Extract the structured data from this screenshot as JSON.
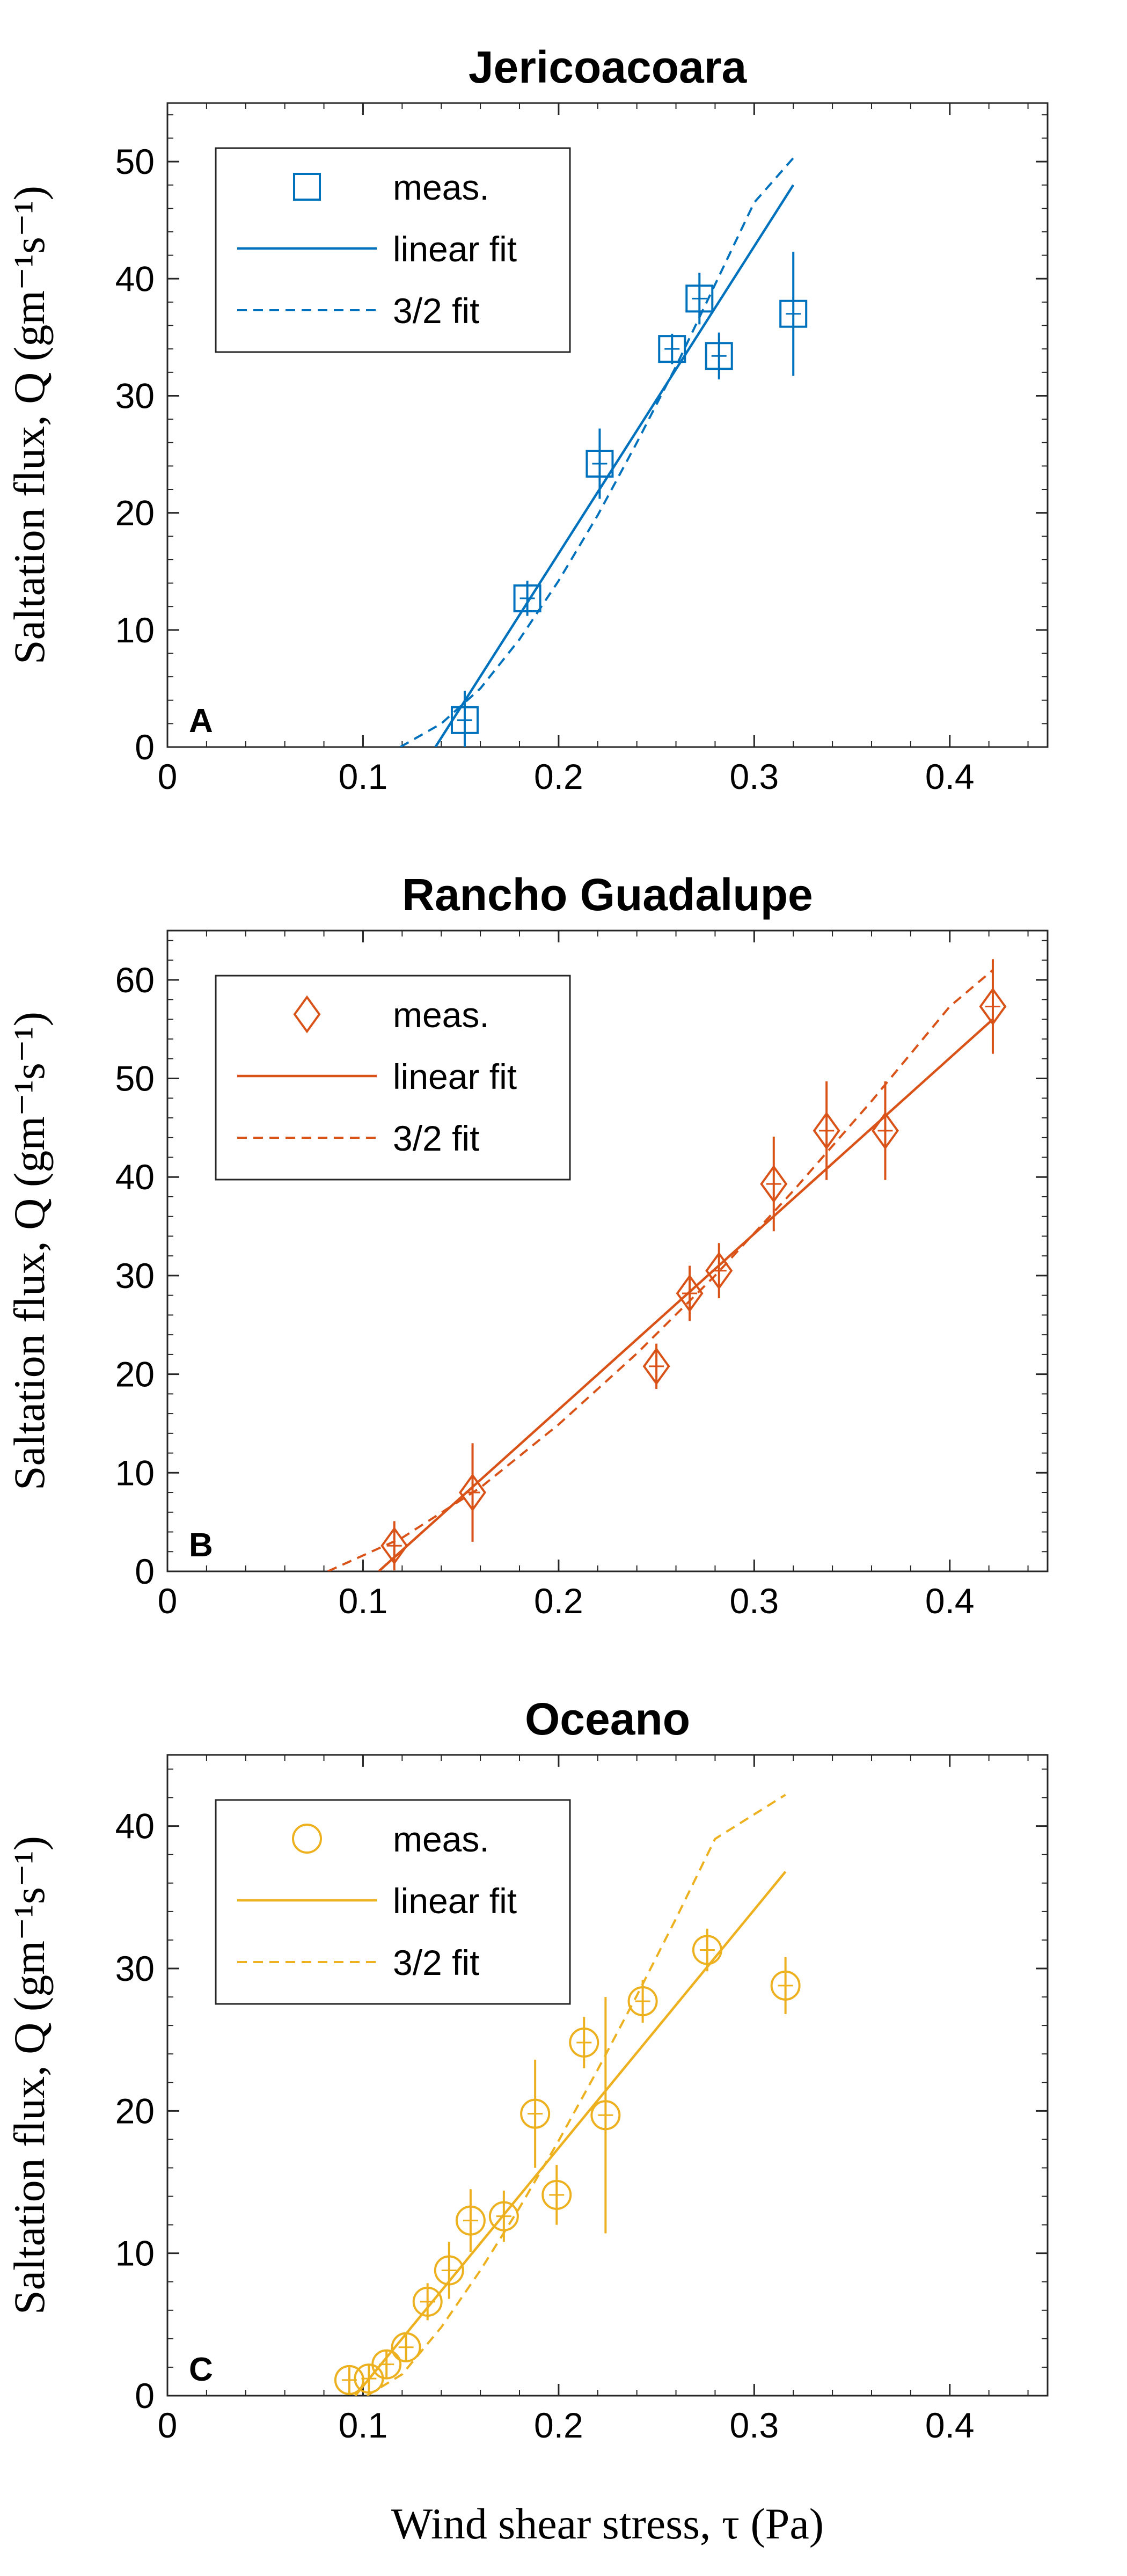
{
  "xlabel": "Wind shear stress, τ (Pa)",
  "chart_data": [
    {
      "type": "scatter",
      "title": "Jericoacoara",
      "panel_label": "A",
      "color": "#0072BD",
      "marker": "square",
      "xlabel": "Wind shear stress, τ (Pa)",
      "ylabel": "Saltation flux, Q (gm⁻¹s⁻¹)",
      "xlim": [
        0,
        0.45
      ],
      "ylim": [
        0,
        55
      ],
      "xticks": [
        "0",
        "0.1",
        "0.2",
        "0.3",
        "0.4"
      ],
      "yticks": [
        "0",
        "10",
        "20",
        "30",
        "40",
        "50"
      ],
      "legend": [
        "meas.",
        "linear fit",
        "3/2 fit"
      ],
      "legend_position": "top-left",
      "points": [
        {
          "x": 0.152,
          "y": 2.3,
          "yerr": 2.5
        },
        {
          "x": 0.184,
          "y": 12.7,
          "yerr": 1.5
        },
        {
          "x": 0.221,
          "y": 24.2,
          "yerr": 3.0
        },
        {
          "x": 0.258,
          "y": 34.0,
          "yerr": 1.3
        },
        {
          "x": 0.272,
          "y": 38.3,
          "yerr": 2.2
        },
        {
          "x": 0.282,
          "y": 33.4,
          "yerr": 2.0
        },
        {
          "x": 0.32,
          "y": 37.0,
          "yerr": 5.3
        }
      ],
      "linear_fit": [
        [
          0.137,
          0
        ],
        [
          0.32,
          48.0
        ]
      ],
      "threehalf_fit": [
        [
          0.119,
          0
        ],
        [
          0.14,
          2.0
        ],
        [
          0.16,
          5.0
        ],
        [
          0.18,
          9.2
        ],
        [
          0.2,
          14.2
        ],
        [
          0.22,
          19.8
        ],
        [
          0.24,
          26.0
        ],
        [
          0.26,
          32.5
        ],
        [
          0.28,
          39.5
        ],
        [
          0.3,
          46.5
        ],
        [
          0.32,
          50.3
        ]
      ]
    },
    {
      "type": "scatter",
      "title": "Rancho Guadalupe",
      "panel_label": "B",
      "color": "#D95319",
      "marker": "diamond",
      "xlabel": "Wind shear stress, τ (Pa)",
      "ylabel": "Saltation flux, Q (gm⁻¹s⁻¹)",
      "xlim": [
        0,
        0.45
      ],
      "ylim": [
        0,
        65
      ],
      "xticks": [
        "0",
        "0.1",
        "0.2",
        "0.3",
        "0.4"
      ],
      "yticks": [
        "0",
        "10",
        "20",
        "30",
        "40",
        "50",
        "60"
      ],
      "legend": [
        "meas.",
        "linear fit",
        "3/2 fit"
      ],
      "legend_position": "top-left",
      "points": [
        {
          "x": 0.116,
          "y": 2.6,
          "yerr": 2.5
        },
        {
          "x": 0.156,
          "y": 8.0,
          "yerr": 5.0
        },
        {
          "x": 0.25,
          "y": 20.8,
          "yerr": 2.3
        },
        {
          "x": 0.267,
          "y": 28.2,
          "yerr": 2.8
        },
        {
          "x": 0.282,
          "y": 30.5,
          "yerr": 2.8
        },
        {
          "x": 0.31,
          "y": 39.3,
          "yerr": 4.8
        },
        {
          "x": 0.337,
          "y": 44.7,
          "yerr": 5.0
        },
        {
          "x": 0.367,
          "y": 44.7,
          "yerr": 5.0
        },
        {
          "x": 0.422,
          "y": 57.3,
          "yerr": 4.8
        }
      ],
      "linear_fit": [
        [
          0.108,
          0
        ],
        [
          0.422,
          56.0
        ]
      ],
      "threehalf_fit": [
        [
          0.082,
          0
        ],
        [
          0.12,
          3.4
        ],
        [
          0.16,
          8.5
        ],
        [
          0.2,
          14.9
        ],
        [
          0.24,
          22.1
        ],
        [
          0.28,
          30.0
        ],
        [
          0.32,
          38.6
        ],
        [
          0.36,
          47.7
        ],
        [
          0.4,
          57.3
        ],
        [
          0.422,
          61.0
        ]
      ]
    },
    {
      "type": "scatter",
      "title": "Oceano",
      "panel_label": "C",
      "color": "#EDB120",
      "marker": "circle",
      "xlabel": "Wind shear stress, τ (Pa)",
      "ylabel": "Saltation flux, Q (gm⁻¹s⁻¹)",
      "xlim": [
        0,
        0.45
      ],
      "ylim": [
        0,
        45
      ],
      "xticks": [
        "0",
        "0.1",
        "0.2",
        "0.3",
        "0.4"
      ],
      "yticks": [
        "0",
        "10",
        "20",
        "30",
        "40"
      ],
      "legend": [
        "meas.",
        "linear fit",
        "3/2 fit"
      ],
      "legend_position": "top-left",
      "points": [
        {
          "x": 0.093,
          "y": 1.1,
          "yerr": 1.0
        },
        {
          "x": 0.103,
          "y": 1.2,
          "yerr": 1.0
        },
        {
          "x": 0.112,
          "y": 2.2,
          "yerr": 1.0
        },
        {
          "x": 0.122,
          "y": 3.4,
          "yerr": 1.0
        },
        {
          "x": 0.133,
          "y": 6.6,
          "yerr": 1.3
        },
        {
          "x": 0.144,
          "y": 8.8,
          "yerr": 2.0
        },
        {
          "x": 0.155,
          "y": 12.3,
          "yerr": 2.2
        },
        {
          "x": 0.172,
          "y": 12.6,
          "yerr": 1.8
        },
        {
          "x": 0.188,
          "y": 19.8,
          "yerr": 3.8
        },
        {
          "x": 0.199,
          "y": 14.1,
          "yerr": 2.1
        },
        {
          "x": 0.213,
          "y": 24.8,
          "yerr": 1.8
        },
        {
          "x": 0.224,
          "y": 19.7,
          "yerr": 8.3
        },
        {
          "x": 0.243,
          "y": 27.7,
          "yerr": 1.5
        },
        {
          "x": 0.276,
          "y": 31.3,
          "yerr": 1.5
        },
        {
          "x": 0.316,
          "y": 28.8,
          "yerr": 2.0
        }
      ],
      "linear_fit": [
        [
          0.096,
          0
        ],
        [
          0.316,
          36.8
        ]
      ],
      "threehalf_fit": [
        [
          0.102,
          0
        ],
        [
          0.12,
          1.5
        ],
        [
          0.14,
          4.8
        ],
        [
          0.16,
          8.8
        ],
        [
          0.18,
          13.2
        ],
        [
          0.2,
          17.9
        ],
        [
          0.22,
          22.9
        ],
        [
          0.24,
          28.1
        ],
        [
          0.26,
          33.5
        ],
        [
          0.28,
          39.1
        ],
        [
          0.316,
          42.2
        ]
      ]
    }
  ]
}
